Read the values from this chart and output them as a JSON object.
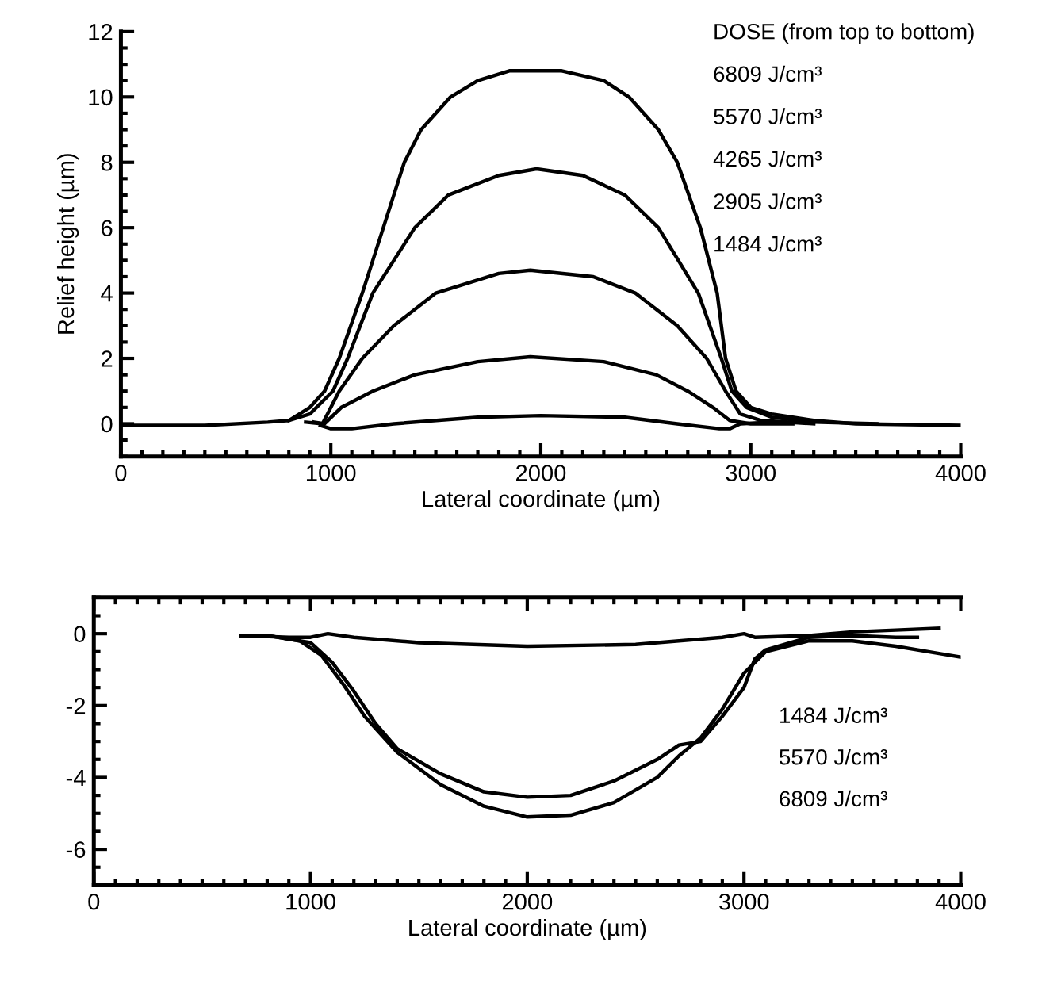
{
  "chart_data": [
    {
      "type": "line",
      "xlabel": "Lateral coordinate (µm)",
      "ylabel": "Relief height (µm)",
      "xlim": [
        0,
        4000
      ],
      "ylim": [
        -1,
        12
      ],
      "xticks": [
        0,
        1000,
        2000,
        3000,
        4000
      ],
      "yticks": [
        0,
        2,
        4,
        6,
        8,
        10,
        12
      ],
      "annotations": [
        "DOSE (from top to bottom)",
        "6809 J/cm³",
        "5570 J/cm³",
        "4265 J/cm³",
        "2905 J/cm³",
        "1484 J/cm³"
      ],
      "series": [
        {
          "color": "#000000",
          "x": [
            0,
            400,
            700,
            800,
            900,
            970,
            1040,
            1150,
            1250,
            1350,
            1430,
            1570,
            1700,
            1850,
            2100,
            2300,
            2420,
            2560,
            2650,
            2760,
            2840,
            2880,
            2930,
            3000,
            3100,
            3300,
            3500,
            4000
          ],
          "values": [
            -0.05,
            -0.05,
            0.05,
            0.1,
            0.5,
            1,
            2,
            4,
            6,
            8,
            9,
            10,
            10.5,
            10.8,
            10.8,
            10.5,
            10,
            9,
            8,
            6,
            4,
            2,
            1,
            0.5,
            0.3,
            0.1,
            0,
            -0.05
          ]
        },
        {
          "color": "#000000",
          "x": [
            800,
            900,
            1010,
            1080,
            1200,
            1400,
            1560,
            1800,
            1980,
            2200,
            2400,
            2560,
            2750,
            2860,
            2910,
            2980,
            3100,
            3300,
            3600
          ],
          "values": [
            0.1,
            0.3,
            1,
            2,
            4,
            6,
            7,
            7.6,
            7.8,
            7.6,
            7,
            6,
            4,
            2,
            1,
            0.5,
            0.2,
            0.05,
            0
          ]
        },
        {
          "color": "#000000",
          "x": [
            880,
            960,
            1040,
            1150,
            1300,
            1500,
            1800,
            1950,
            2250,
            2450,
            2650,
            2790,
            2880,
            2950,
            3050,
            3300
          ],
          "values": [
            0.05,
            0,
            1,
            2,
            3,
            4,
            4.6,
            4.7,
            4.5,
            4,
            3,
            2,
            1,
            0.3,
            0.1,
            0
          ]
        },
        {
          "color": "#000000",
          "x": [
            920,
            970,
            1050,
            1200,
            1400,
            1700,
            1950,
            2300,
            2550,
            2700,
            2820,
            2900,
            3000,
            3200
          ],
          "values": [
            0.05,
            0,
            0.5,
            1,
            1.5,
            1.9,
            2.05,
            1.9,
            1.5,
            1,
            0.5,
            0.1,
            0,
            0
          ]
        },
        {
          "color": "#000000",
          "x": [
            950,
            1000,
            1100,
            1300,
            1700,
            2000,
            2400,
            2650,
            2850,
            2900,
            2950,
            3100
          ],
          "values": [
            -0.05,
            -0.15,
            -0.15,
            0,
            0.2,
            0.25,
            0.2,
            0,
            -0.15,
            -0.15,
            0,
            0.05
          ]
        }
      ]
    },
    {
      "type": "line",
      "xlabel": "Lateral coordinate (µm)",
      "xlim": [
        0,
        4000
      ],
      "ylim": [
        -7,
        1
      ],
      "xticks": [
        0,
        1000,
        2000,
        3000,
        4000
      ],
      "yticks": [
        -6,
        -4,
        -2,
        0
      ],
      "annotations": [
        "1484 J/cm³",
        "5570 J/cm³",
        "6809 J/cm³"
      ],
      "series": [
        {
          "color": "#000000",
          "x": [
            680,
            900,
            1000,
            1080,
            1200,
            1500,
            2000,
            2500,
            2900,
            3000,
            3050,
            3300,
            3500,
            3700,
            3900
          ],
          "values": [
            -0.05,
            -0.1,
            -0.1,
            0,
            -0.1,
            -0.25,
            -0.35,
            -0.3,
            -0.1,
            0,
            -0.1,
            -0.05,
            0.05,
            0.1,
            0.15
          ]
        },
        {
          "color": "#000000",
          "x": [
            680,
            800,
            900,
            1000,
            1100,
            1200,
            1300,
            1400,
            1600,
            1800,
            2000,
            2200,
            2400,
            2600,
            2700,
            2800,
            2900,
            3000,
            3050,
            3100,
            3300,
            3500,
            3700,
            3800
          ],
          "values": [
            -0.05,
            -0.05,
            -0.15,
            -0.25,
            -0.8,
            -1.6,
            -2.5,
            -3.2,
            -3.9,
            -4.4,
            -4.55,
            -4.5,
            -4.1,
            -3.5,
            -3.1,
            -3.0,
            -2.3,
            -1.5,
            -0.7,
            -0.45,
            -0.1,
            -0.05,
            -0.1,
            -0.1
          ]
        },
        {
          "color": "#000000",
          "x": [
            680,
            800,
            950,
            1050,
            1150,
            1250,
            1400,
            1600,
            1800,
            2000,
            2200,
            2400,
            2600,
            2700,
            2800,
            2900,
            3000,
            3100,
            3300,
            3500,
            3700,
            3900,
            4000
          ],
          "values": [
            -0.05,
            -0.05,
            -0.2,
            -0.6,
            -1.4,
            -2.3,
            -3.3,
            -4.2,
            -4.8,
            -5.1,
            -5.05,
            -4.7,
            -4.0,
            -3.4,
            -2.9,
            -2.1,
            -1.1,
            -0.5,
            -0.2,
            -0.2,
            -0.35,
            -0.55,
            -0.65
          ]
        }
      ]
    }
  ]
}
